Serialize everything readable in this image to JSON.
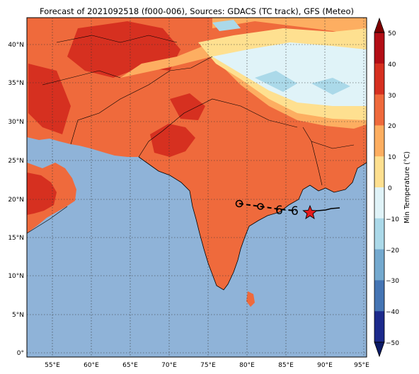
{
  "title": "Forecast of 2021092518 (f000-006), Sources: GDACS (TC track), GFS (Meteo)",
  "map": {
    "lon_ticks": [
      "55°E",
      "60°E",
      "65°E",
      "70°E",
      "75°E",
      "80°E",
      "85°E",
      "90°E",
      "95°E"
    ],
    "lat_ticks": [
      "40°N",
      "35°N",
      "30°N",
      "25°N",
      "20°N",
      "15°N",
      "10°N",
      "5°N",
      "0°"
    ],
    "ocean_color": "#8fb3d8",
    "grid": "dotted"
  },
  "colorbar": {
    "label": "Min Temperature (°C)",
    "ticks": [
      "50",
      "40",
      "30",
      "20",
      "10",
      "0",
      "−10",
      "−20",
      "−30",
      "−40",
      "−50"
    ],
    "colors": [
      "#7f0000",
      "#b30e16",
      "#d63020",
      "#ef6a3c",
      "#fdae61",
      "#fee090",
      "#e0f3f8",
      "#abd9e9",
      "#74a9cf",
      "#4575b4",
      "#1c2a8c",
      "#0c1b66"
    ]
  },
  "track": {
    "markers": [
      "past-position",
      "past-position",
      "tropical-storm",
      "tropical-storm",
      "current-position-star"
    ],
    "star_color": "#e41a1c"
  }
}
